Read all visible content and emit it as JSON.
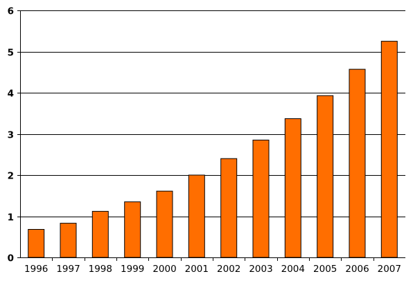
{
  "chart_data": {
    "type": "bar",
    "categories": [
      "1996",
      "1997",
      "1998",
      "1999",
      "2000",
      "2001",
      "2002",
      "2003",
      "2004",
      "2005",
      "2006",
      "2007"
    ],
    "values": [
      0.68,
      0.83,
      1.12,
      1.35,
      1.61,
      2.0,
      2.4,
      2.85,
      3.37,
      3.93,
      4.57,
      5.25
    ],
    "ylim": [
      0,
      6
    ],
    "yticks": [
      0,
      1,
      2,
      3,
      4,
      5,
      6
    ],
    "grid": "horizontal",
    "bar_color": "#ff6e00",
    "bar_edge_color": "#000000",
    "gridline_color": "#000000"
  }
}
